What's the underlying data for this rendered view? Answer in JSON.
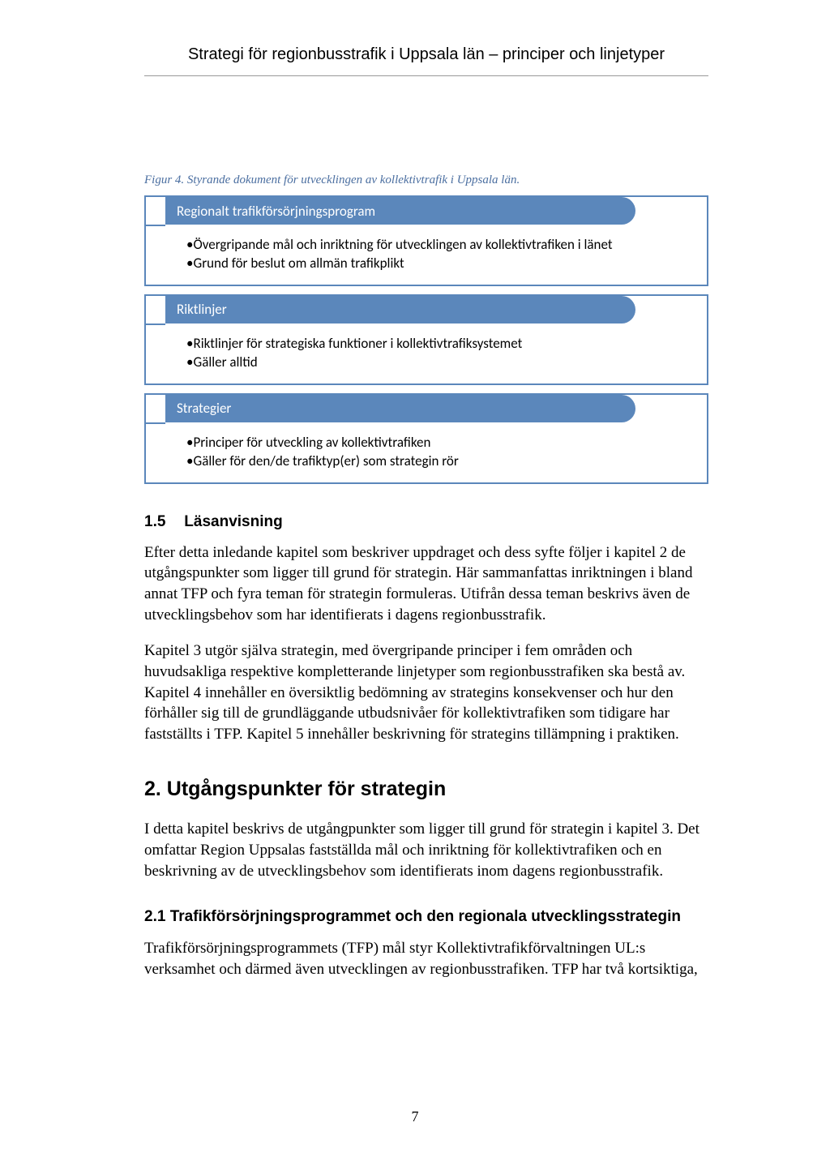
{
  "header": {
    "running_title": "Strategi för regionbusstrafik i Uppsala län – principer och linjetyper"
  },
  "figure": {
    "caption": "Figur 4. Styrande dokument för utvecklingen av kollektivtrafik i Uppsala län.",
    "caption_color": "#4a6ea0",
    "caption_fontsize": 15,
    "type": "infographic",
    "block_border_color": "#5b87bb",
    "pill_color": "#5b87bb",
    "pill_text_color": "#ffffff",
    "body_font": "Calibri",
    "body_fontsize": 17,
    "blocks": [
      {
        "title": "Regionalt trafikförsörjningsprogram",
        "bullets": [
          "•Övergripande mål och inriktning för utvecklingen av kollektivtrafiken i länet",
          "•Grund för beslut om allmän trafikplikt"
        ]
      },
      {
        "title": "Riktlinjer",
        "bullets": [
          "•Riktlinjer för strategiska funktioner i kollektivtrafiksystemet",
          "•Gäller alltid"
        ]
      },
      {
        "title": "Strategier",
        "bullets": [
          "•Principer för utveckling av kollektivtrafiken",
          "•Gäller för den/de trafiktyp(er) som strategin rör"
        ]
      }
    ]
  },
  "section_1_5": {
    "number": "1.5",
    "title": "Läsanvisning",
    "p1": "Efter detta inledande kapitel som beskriver uppdraget och dess syfte följer i kapitel 2 de utgångspunkter som ligger till grund för strategin. Här sammanfattas inriktningen i bland annat TFP och fyra teman för strategin formuleras. Utifrån dessa teman beskrivs även de utvecklingsbehov som har identifierats i dagens regionbusstrafik.",
    "p2": "Kapitel 3 utgör själva strategin, med övergripande principer i fem områden och huvudsakliga respektive kompletterande linjetyper som regionbusstrafiken ska bestå av. Kapitel 4 innehåller en översiktlig bedömning av strategins konsekvenser och hur den förhåller sig till de grundläggande utbudsnivåer för kollektivtrafiken som tidigare har fastställts i TFP. Kapitel 5 innehåller beskrivning för strategins tillämpning i praktiken."
  },
  "section_2": {
    "title": "2. Utgångspunkter för strategin",
    "intro": "I detta kapitel beskrivs de utgångpunkter som ligger till grund för strategin i kapitel 3. Det omfattar Region Uppsalas fastställda mål och inriktning för kollektivtrafiken och en beskrivning av de utvecklingsbehov som identifierats inom dagens regionbusstrafik."
  },
  "section_2_1": {
    "title": "2.1 Trafikförsörjningsprogrammet och den regionala utvecklingsstrategin",
    "p1": "Trafikförsörjningsprogrammets (TFP) mål styr Kollektivtrafikförvaltningen UL:s verksamhet och därmed även utvecklingen av regionbusstrafiken. TFP har två kortsiktiga,"
  },
  "page_number": "7",
  "colors": {
    "text": "#000000",
    "background": "#ffffff",
    "rule": "#9a9a9a"
  },
  "typography": {
    "body_font": "Times New Roman",
    "body_fontsize": 19,
    "heading_font": "Arial",
    "chapter_fontsize": 25,
    "subheading_fontsize": 19
  }
}
